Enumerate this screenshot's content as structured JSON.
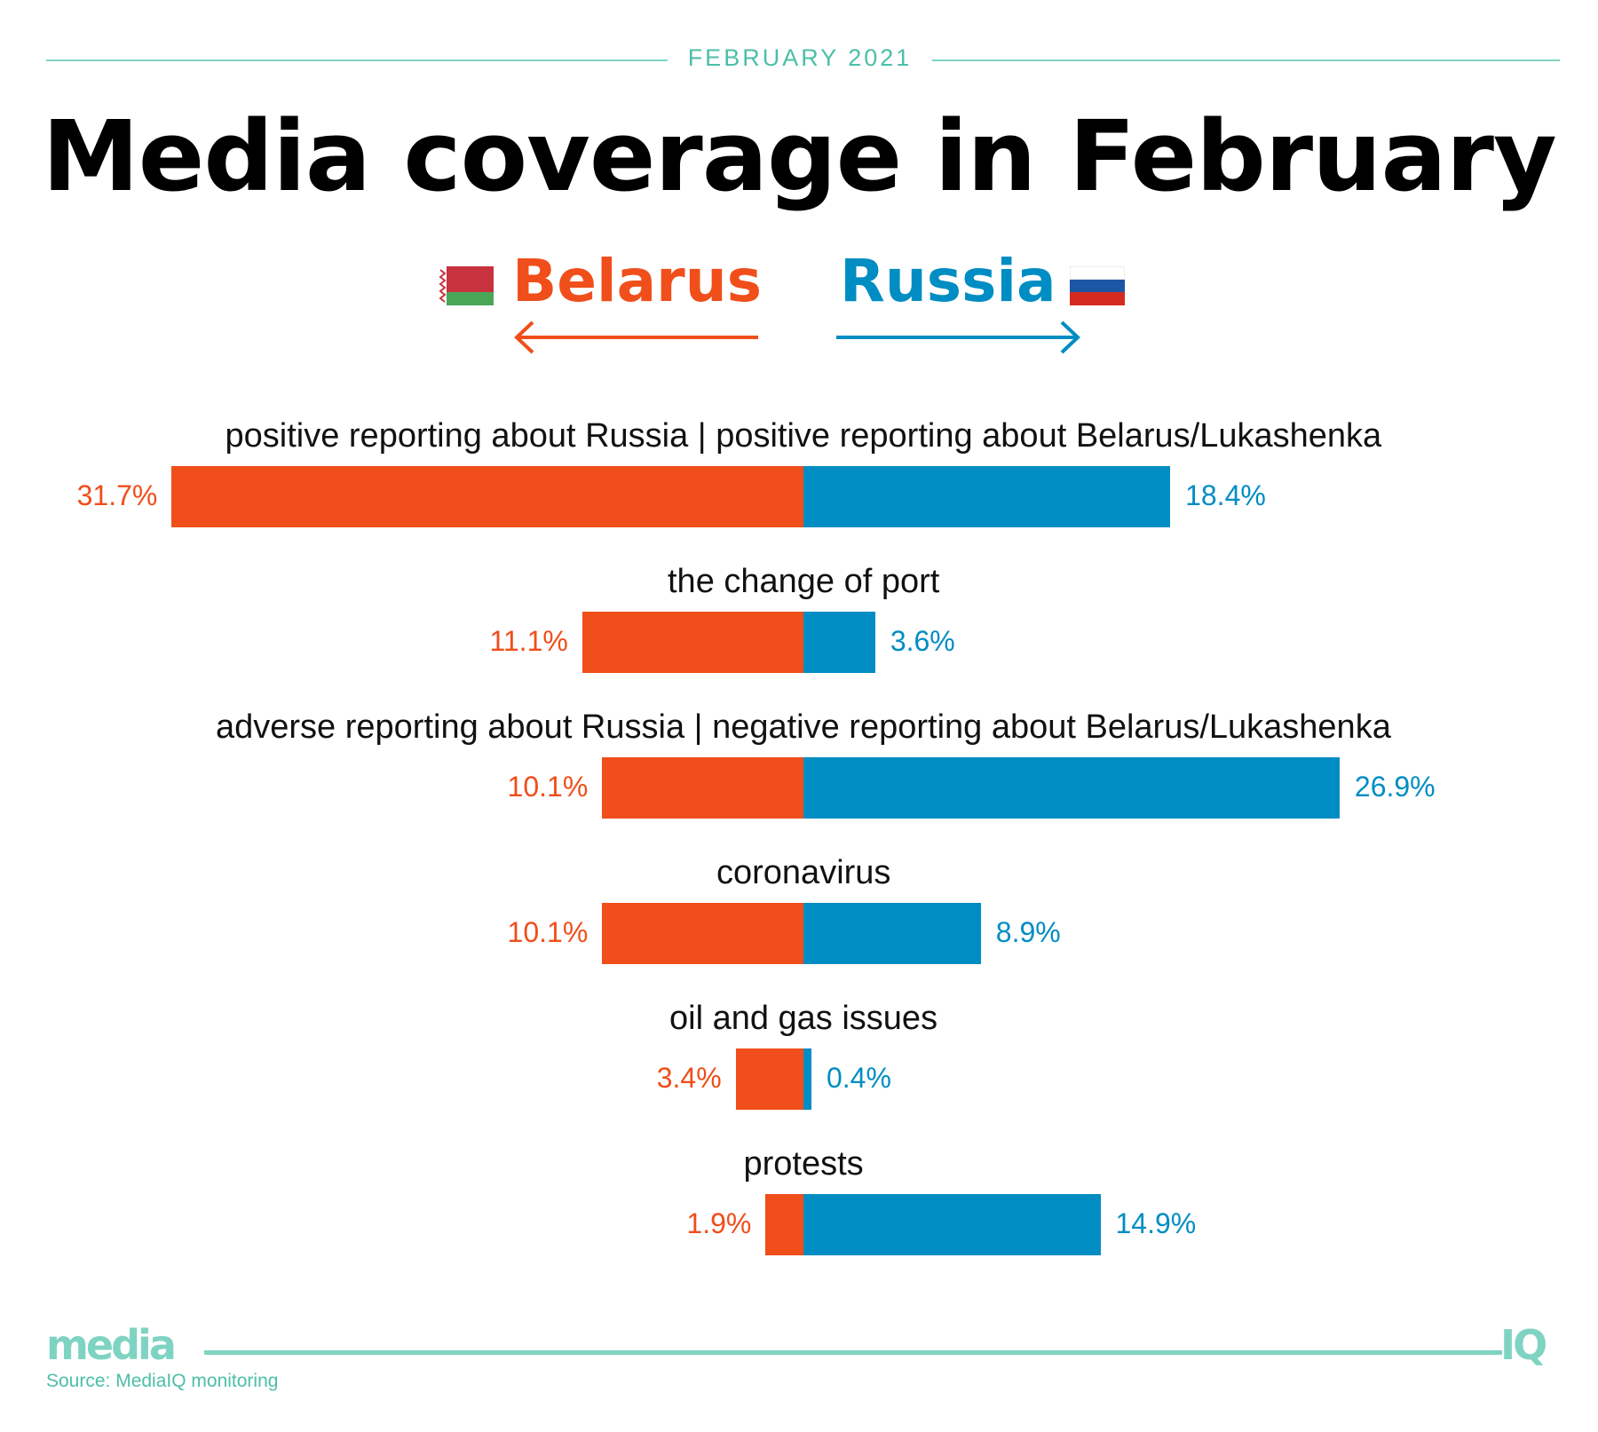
{
  "header": {
    "date": "FEBRUARY 2021",
    "title": "Media coverage in February"
  },
  "legend": {
    "left_label": "Belarus",
    "right_label": "Russia",
    "left_flag": "belarus-flag-icon",
    "right_flag": "russia-flag-icon"
  },
  "colors": {
    "belarus": "#f04e1a",
    "russia": "#008dc3",
    "accent": "#7fd3c2"
  },
  "chart_data": {
    "type": "bar",
    "orientation": "horizontal-diverging",
    "series": [
      {
        "name": "Belarus",
        "values": [
          31.7,
          11.1,
          10.1,
          10.1,
          3.4,
          1.9
        ]
      },
      {
        "name": "Russia",
        "values": [
          18.4,
          3.6,
          26.9,
          8.9,
          0.4,
          14.9
        ]
      }
    ],
    "categories": [
      "positive reporting about Russia | positive reporting about Belarus/Lukashenka",
      "the change of port",
      "adverse reporting about Russia | negative reporting about Belarus/Lukashenka",
      "coronavirus",
      "oil and gas issues",
      "protests"
    ],
    "value_labels_left": [
      "31.7%",
      "11.1%",
      "10.1%",
      "10.1%",
      "3.4%",
      "1.9%"
    ],
    "value_labels_right": [
      "18.4%",
      "3.6%",
      "26.9%",
      "8.9%",
      "0.4%",
      "14.9%"
    ]
  },
  "footer": {
    "logo_left": "media",
    "logo_right": "IQ",
    "source": "Source: MediaIQ monitoring"
  }
}
